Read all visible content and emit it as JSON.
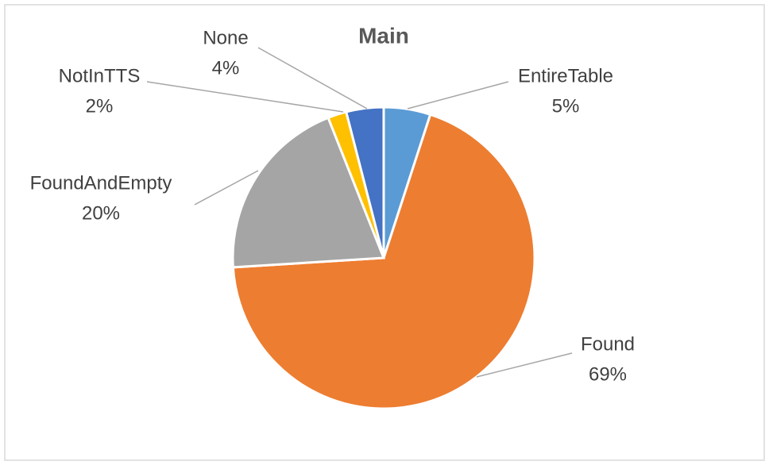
{
  "chart_data": {
    "type": "pie",
    "title": "Main",
    "categories": [
      "EntireTable",
      "Found",
      "FoundAndEmpty",
      "NotInTTS",
      "None"
    ],
    "values": [
      5,
      69,
      20,
      2,
      4
    ],
    "value_labels": [
      "5%",
      "69%",
      "20%",
      "2%",
      "4%"
    ],
    "colors": [
      "#5b9bd5",
      "#ed7d31",
      "#a5a5a5",
      "#ffc000",
      "#4472c4"
    ]
  }
}
